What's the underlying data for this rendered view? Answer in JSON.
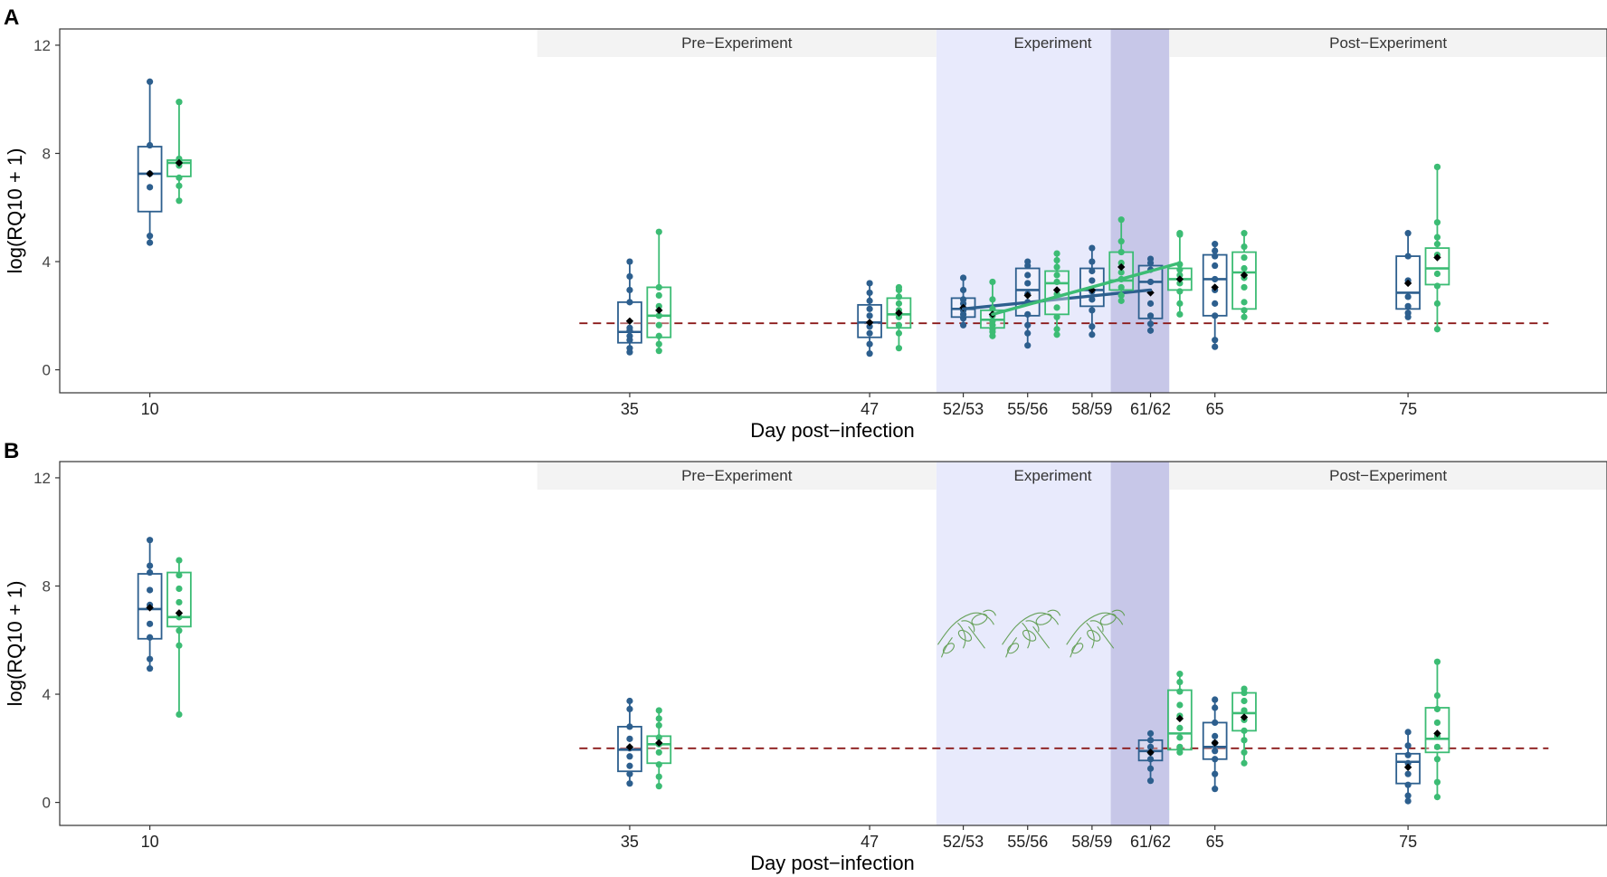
{
  "figure": {
    "colors": {
      "blue": "#2d5f8e",
      "green": "#3cbc74",
      "threshold": "#8b1a1a",
      "experiment_shade": "#e8eafc",
      "overlap_shade": "#c7c7e8",
      "strip_fill": "#f3f3f3",
      "mean_marker": "#000000"
    }
  },
  "chart_data": [
    {
      "panel_label": "A",
      "type": "box",
      "xlabel": "Day post−infection",
      "ylabel": "log(RQ10 + 1)",
      "ylim": [
        -0.85,
        12.6
      ],
      "yticks": [
        0,
        4,
        8,
        12
      ],
      "xlim": [
        5.3,
        137.5
      ],
      "xticks": [
        {
          "pos": 13,
          "label": "10"
        },
        {
          "pos": 54,
          "label": "35"
        },
        {
          "pos": 74.5,
          "label": "47"
        },
        {
          "pos": 82.5,
          "label": "52/53"
        },
        {
          "pos": 88,
          "label": "55/56"
        },
        {
          "pos": 93.5,
          "label": "58/59"
        },
        {
          "pos": 98.5,
          "label": "61/62"
        },
        {
          "pos": 104,
          "label": "65"
        },
        {
          "pos": 120.5,
          "label": "75"
        }
      ],
      "phases": [
        {
          "label": "Pre−Experiment",
          "start": 46.1,
          "end": 80.2
        },
        {
          "label": "Experiment",
          "start": 80.2,
          "end": 100.1
        },
        {
          "label": "Post−Experiment",
          "start": 100.1,
          "end": 137.5
        }
      ],
      "experiment_shade": [
        80.2,
        95.1
      ],
      "overlap_shade": [
        95.1,
        100.1
      ],
      "threshold": 1.72,
      "threshold_span": [
        49.7,
        132.5
      ],
      "series": [
        {
          "name": "blue",
          "boxes": [
            {
              "x": 13,
              "q1": 5.85,
              "median": 7.25,
              "q3": 8.25,
              "lo": 4.7,
              "hi": 10.65,
              "mean": 7.25,
              "points": [
                4.7,
                4.95,
                6.75,
                7.25,
                8.3,
                10.65
              ]
            },
            {
              "x": 54,
              "q1": 1.0,
              "median": 1.4,
              "q3": 2.5,
              "lo": 0.65,
              "hi": 4.0,
              "mean": 1.8,
              "points": [
                0.65,
                0.8,
                1.1,
                1.25,
                1.45,
                1.55,
                2.5,
                2.95,
                3.45,
                4.0
              ]
            },
            {
              "x": 74.5,
              "q1": 1.2,
              "median": 1.75,
              "q3": 2.4,
              "lo": 0.6,
              "hi": 3.2,
              "mean": 1.75,
              "points": [
                0.6,
                0.95,
                1.35,
                1.6,
                2.0,
                2.25,
                2.55,
                2.85,
                3.2
              ]
            },
            {
              "x": 82.5,
              "q1": 1.95,
              "median": 2.25,
              "q3": 2.65,
              "lo": 1.65,
              "hi": 3.4,
              "mean": 2.3,
              "points": [
                1.65,
                1.9,
                2.05,
                2.2,
                2.45,
                2.6,
                2.95,
                3.4
              ]
            },
            {
              "x": 88,
              "q1": 2.0,
              "median": 2.95,
              "q3": 3.75,
              "lo": 0.9,
              "hi": 4.0,
              "mean": 2.75,
              "points": [
                0.9,
                1.35,
                1.65,
                2.05,
                2.5,
                2.8,
                3.2,
                3.5,
                3.85,
                4.0
              ]
            },
            {
              "x": 93.5,
              "q1": 2.35,
              "median": 2.95,
              "q3": 3.75,
              "lo": 1.3,
              "hi": 4.5,
              "mean": 2.95,
              "points": [
                1.3,
                1.6,
                2.2,
                2.6,
                2.9,
                3.3,
                3.65,
                4.0,
                4.5
              ]
            },
            {
              "x": 98.5,
              "q1": 1.9,
              "median": 3.25,
              "q3": 3.85,
              "lo": 1.45,
              "hi": 4.1,
              "mean": 2.85,
              "points": [
                1.45,
                1.7,
                2.0,
                2.45,
                3.25,
                3.7,
                3.95,
                4.1
              ]
            },
            {
              "x": 104,
              "q1": 2.0,
              "median": 3.35,
              "q3": 4.25,
              "lo": 0.85,
              "hi": 4.65,
              "mean": 3.05,
              "points": [
                0.85,
                1.1,
                2.0,
                2.45,
                2.95,
                3.35,
                3.85,
                4.2,
                4.4,
                4.65
              ]
            },
            {
              "x": 120.5,
              "q1": 2.25,
              "median": 2.85,
              "q3": 4.2,
              "lo": 1.95,
              "hi": 5.05,
              "mean": 3.2,
              "points": [
                1.95,
                2.1,
                2.35,
                2.7,
                3.3,
                4.2,
                5.05
              ]
            }
          ],
          "trend": {
            "x": [
              82.5,
              98.5
            ],
            "y": [
              2.25,
              2.95
            ]
          }
        },
        {
          "name": "green",
          "boxes": [
            {
              "x": 15.5,
              "q1": 7.15,
              "median": 7.65,
              "q3": 7.75,
              "lo": 6.25,
              "hi": 9.9,
              "mean": 7.65,
              "points": [
                6.25,
                6.8,
                7.1,
                7.55,
                7.7,
                7.8,
                9.9,
                9.9
              ]
            },
            {
              "x": 56.5,
              "q1": 1.2,
              "median": 2.0,
              "q3": 3.05,
              "lo": 0.7,
              "hi": 5.1,
              "mean": 2.2,
              "points": [
                0.7,
                0.95,
                1.25,
                1.65,
                2.0,
                2.35,
                2.75,
                3.05,
                5.1
              ]
            },
            {
              "x": 77,
              "q1": 1.55,
              "median": 2.05,
              "q3": 2.65,
              "lo": 0.8,
              "hi": 3.05,
              "mean": 2.1,
              "points": [
                0.8,
                1.35,
                1.65,
                1.95,
                2.2,
                2.45,
                2.7,
                2.95,
                3.05
              ]
            },
            {
              "x": 85,
              "q1": 1.55,
              "median": 1.85,
              "q3": 2.2,
              "lo": 1.25,
              "hi": 3.25,
              "mean": 2.05,
              "points": [
                1.25,
                1.4,
                1.5,
                1.65,
                1.8,
                2.0,
                2.25,
                2.6,
                3.25
              ]
            },
            {
              "x": 90.5,
              "q1": 2.05,
              "median": 3.2,
              "q3": 3.65,
              "lo": 1.3,
              "hi": 4.3,
              "mean": 2.95,
              "points": [
                1.3,
                1.5,
                1.95,
                2.3,
                2.8,
                3.25,
                3.5,
                3.8,
                4.05,
                4.3
              ]
            },
            {
              "x": 96,
              "q1": 2.95,
              "median": 3.3,
              "q3": 4.35,
              "lo": 2.55,
              "hi": 5.55,
              "mean": 3.8,
              "points": [
                2.55,
                2.75,
                3.05,
                3.35,
                3.6,
                3.95,
                4.35,
                4.75,
                5.55
              ]
            },
            {
              "x": 101,
              "q1": 2.95,
              "median": 3.35,
              "q3": 3.75,
              "lo": 2.05,
              "hi": 5.05,
              "mean": 3.35,
              "points": [
                2.05,
                2.45,
                2.9,
                3.2,
                3.5,
                3.7,
                3.9,
                5.0,
                5.05
              ]
            },
            {
              "x": 106.5,
              "q1": 2.25,
              "median": 3.6,
              "q3": 4.35,
              "lo": 1.95,
              "hi": 5.05,
              "mean": 3.5,
              "points": [
                1.95,
                2.2,
                2.5,
                3.05,
                3.4,
                3.75,
                4.15,
                4.55,
                5.05
              ]
            },
            {
              "x": 123,
              "q1": 3.15,
              "median": 3.75,
              "q3": 4.5,
              "lo": 1.5,
              "hi": 7.5,
              "mean": 4.15,
              "points": [
                1.5,
                2.45,
                3.1,
                3.55,
                4.25,
                4.65,
                4.9,
                5.45,
                7.5,
                7.5
              ]
            }
          ],
          "trend": {
            "x": [
              85,
              101
            ],
            "y": [
              2.05,
              3.95
            ]
          }
        }
      ]
    },
    {
      "panel_label": "B",
      "type": "box",
      "xlabel": "Day post−infection",
      "ylabel": "log(RQ10 + 1)",
      "ylim": [
        -0.85,
        12.6
      ],
      "yticks": [
        0,
        4,
        8,
        12
      ],
      "xlim": [
        5.3,
        137.5
      ],
      "xticks": [
        {
          "pos": 13,
          "label": "10"
        },
        {
          "pos": 54,
          "label": "35"
        },
        {
          "pos": 74.5,
          "label": "47"
        },
        {
          "pos": 82.5,
          "label": "52/53"
        },
        {
          "pos": 88,
          "label": "55/56"
        },
        {
          "pos": 93.5,
          "label": "58/59"
        },
        {
          "pos": 98.5,
          "label": "61/62"
        },
        {
          "pos": 104,
          "label": "65"
        },
        {
          "pos": 120.5,
          "label": "75"
        }
      ],
      "phases": [
        {
          "label": "Pre−Experiment",
          "start": 46.1,
          "end": 80.2
        },
        {
          "label": "Experiment",
          "start": 80.2,
          "end": 100.1
        },
        {
          "label": "Post−Experiment",
          "start": 100.1,
          "end": 137.5
        }
      ],
      "experiment_shade": [
        80.2,
        95.1
      ],
      "overlap_shade": [
        95.1,
        100.1
      ],
      "threshold": 2.0,
      "threshold_span": [
        49.7,
        132.5
      ],
      "treatment_icons": [
        82.8,
        88.3,
        93.8
      ],
      "series": [
        {
          "name": "blue",
          "boxes": [
            {
              "x": 13,
              "q1": 6.05,
              "median": 7.15,
              "q3": 8.45,
              "lo": 4.95,
              "hi": 9.7,
              "mean": 7.2,
              "points": [
                4.95,
                5.3,
                6.1,
                6.6,
                7.3,
                7.85,
                8.5,
                8.75,
                9.7
              ]
            },
            {
              "x": 54,
              "q1": 1.15,
              "median": 1.95,
              "q3": 2.8,
              "lo": 0.7,
              "hi": 3.75,
              "mean": 2.05,
              "points": [
                0.7,
                1.05,
                1.35,
                1.7,
                2.0,
                2.35,
                2.8,
                3.45,
                3.75
              ]
            },
            {
              "x": 98.5,
              "q1": 1.55,
              "median": 1.9,
              "q3": 2.3,
              "lo": 0.8,
              "hi": 2.55,
              "mean": 1.85,
              "points": [
                0.8,
                1.25,
                1.6,
                1.85,
                2.05,
                2.3,
                2.55
              ]
            },
            {
              "x": 104,
              "q1": 1.6,
              "median": 2.05,
              "q3": 2.95,
              "lo": 0.5,
              "hi": 3.8,
              "mean": 2.2,
              "points": [
                0.5,
                1.05,
                1.6,
                1.9,
                2.2,
                2.45,
                2.95,
                3.5,
                3.8
              ]
            },
            {
              "x": 120.5,
              "q1": 0.7,
              "median": 1.5,
              "q3": 1.8,
              "lo": 0.05,
              "hi": 2.6,
              "mean": 1.3,
              "points": [
                0.05,
                0.25,
                0.65,
                1.05,
                1.45,
                1.75,
                2.1,
                2.6
              ]
            }
          ]
        },
        {
          "name": "green",
          "boxes": [
            {
              "x": 15.5,
              "q1": 6.5,
              "median": 6.85,
              "q3": 8.5,
              "lo": 3.25,
              "hi": 8.95,
              "mean": 7.0,
              "points": [
                3.25,
                5.8,
                6.35,
                6.85,
                7.4,
                7.9,
                8.4,
                8.95
              ]
            },
            {
              "x": 56.5,
              "q1": 1.45,
              "median": 2.15,
              "q3": 2.45,
              "lo": 0.6,
              "hi": 3.4,
              "mean": 2.2,
              "points": [
                0.6,
                0.95,
                1.4,
                1.85,
                2.15,
                2.4,
                2.85,
                3.1,
                3.4
              ]
            },
            {
              "x": 101,
              "q1": 1.95,
              "median": 2.55,
              "q3": 4.15,
              "lo": 1.85,
              "hi": 4.75,
              "mean": 3.1,
              "points": [
                1.85,
                2.05,
                2.4,
                2.75,
                3.2,
                3.6,
                4.1,
                4.45,
                4.75
              ]
            },
            {
              "x": 106.5,
              "q1": 2.65,
              "median": 3.3,
              "q3": 4.05,
              "lo": 1.45,
              "hi": 4.2,
              "mean": 3.15,
              "points": [
                1.45,
                1.85,
                2.3,
                2.65,
                3.05,
                3.4,
                3.75,
                4.05,
                4.2
              ]
            },
            {
              "x": 123,
              "q1": 1.85,
              "median": 2.35,
              "q3": 3.5,
              "lo": 0.2,
              "hi": 5.2,
              "mean": 2.55,
              "points": [
                0.2,
                0.75,
                1.6,
                2.05,
                2.45,
                2.95,
                3.45,
                3.95,
                5.2
              ]
            }
          ]
        }
      ]
    }
  ]
}
